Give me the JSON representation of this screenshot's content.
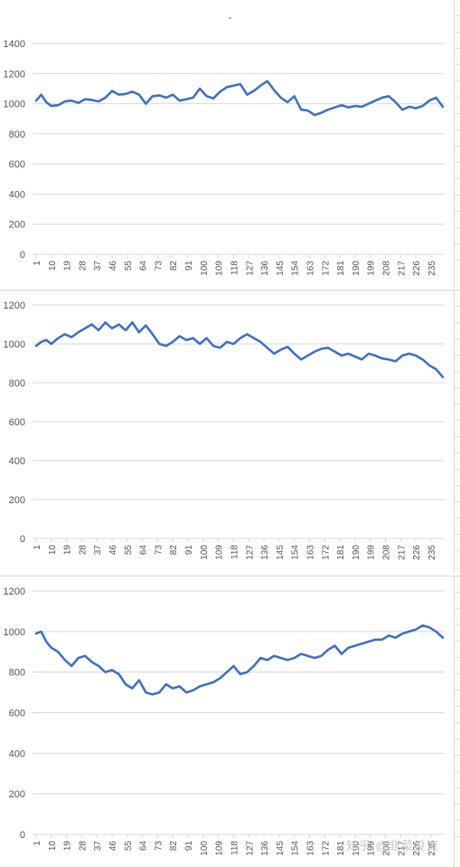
{
  "window": {
    "title": "-"
  },
  "watermark": "知乎 @韭菜投资",
  "colors": {
    "series": "#4472c4",
    "grid": "#d9d9d9",
    "text": "#595959"
  },
  "chart_data": [
    {
      "type": "line",
      "title": "",
      "xlabel": "",
      "ylabel": "",
      "ylim": [
        0,
        1400
      ],
      "yticks": [
        0,
        200,
        400,
        600,
        800,
        1000,
        1200,
        1400
      ],
      "x_range": [
        1,
        242
      ],
      "xticks": [
        1,
        10,
        19,
        28,
        37,
        46,
        55,
        64,
        73,
        82,
        91,
        100,
        109,
        118,
        127,
        136,
        145,
        154,
        163,
        172,
        181,
        190,
        199,
        208,
        217,
        226,
        235
      ],
      "grid": true,
      "legend": "none",
      "series": [
        {
          "x": [
            1,
            4,
            7,
            10,
            14,
            18,
            22,
            26,
            30,
            34,
            38,
            42,
            46,
            50,
            54,
            58,
            62,
            66,
            70,
            74,
            78,
            82,
            86,
            90,
            94,
            98,
            102,
            106,
            110,
            114,
            118,
            122,
            126,
            130,
            134,
            138,
            142,
            146,
            150,
            154,
            158,
            162,
            166,
            170,
            174,
            178,
            182,
            186,
            190,
            194,
            198,
            202,
            206,
            210,
            214,
            218,
            222,
            226,
            230,
            234,
            238,
            242
          ],
          "values": [
            1020,
            1060,
            1010,
            985,
            990,
            1015,
            1020,
            1005,
            1030,
            1025,
            1015,
            1040,
            1085,
            1060,
            1065,
            1080,
            1060,
            1000,
            1050,
            1055,
            1040,
            1060,
            1020,
            1030,
            1040,
            1100,
            1050,
            1035,
            1080,
            1110,
            1120,
            1130,
            1060,
            1085,
            1120,
            1150,
            1090,
            1040,
            1010,
            1050,
            960,
            955,
            925,
            940,
            960,
            975,
            990,
            975,
            985,
            980,
            1000,
            1020,
            1040,
            1050,
            1010,
            960,
            980,
            970,
            985,
            1020,
            1040,
            980
          ]
        }
      ]
    },
    {
      "type": "line",
      "title": "",
      "xlabel": "",
      "ylabel": "",
      "ylim": [
        0,
        1200
      ],
      "yticks": [
        0,
        200,
        400,
        600,
        800,
        1000,
        1200
      ],
      "x_range": [
        1,
        242
      ],
      "xticks": [
        1,
        10,
        19,
        28,
        37,
        46,
        55,
        64,
        73,
        82,
        91,
        100,
        109,
        118,
        127,
        136,
        145,
        154,
        163,
        172,
        181,
        190,
        199,
        208,
        217,
        226,
        235
      ],
      "grid": true,
      "legend": "none",
      "series": [
        {
          "x": [
            1,
            4,
            7,
            10,
            14,
            18,
            22,
            26,
            30,
            34,
            38,
            42,
            46,
            50,
            54,
            58,
            62,
            66,
            70,
            74,
            78,
            82,
            86,
            90,
            94,
            98,
            102,
            106,
            110,
            114,
            118,
            122,
            126,
            130,
            134,
            138,
            142,
            146,
            150,
            154,
            158,
            162,
            166,
            170,
            174,
            178,
            182,
            186,
            190,
            194,
            198,
            202,
            206,
            210,
            214,
            218,
            222,
            226,
            230,
            234,
            238,
            242
          ],
          "values": [
            990,
            1010,
            1020,
            1000,
            1030,
            1050,
            1035,
            1060,
            1080,
            1100,
            1070,
            1110,
            1080,
            1100,
            1070,
            1110,
            1060,
            1095,
            1050,
            1000,
            990,
            1010,
            1040,
            1020,
            1030,
            1000,
            1030,
            990,
            980,
            1010,
            1000,
            1030,
            1050,
            1030,
            1010,
            980,
            950,
            970,
            985,
            950,
            920,
            940,
            960,
            975,
            980,
            960,
            940,
            950,
            935,
            920,
            950,
            940,
            925,
            920,
            910,
            940,
            950,
            940,
            920,
            890,
            870,
            830
          ]
        }
      ]
    },
    {
      "type": "line",
      "title": "",
      "xlabel": "",
      "ylabel": "",
      "ylim": [
        0,
        1200
      ],
      "yticks": [
        0,
        200,
        400,
        600,
        800,
        1000,
        1200
      ],
      "x_range": [
        1,
        242
      ],
      "xticks": [
        1,
        10,
        19,
        28,
        37,
        46,
        55,
        64,
        73,
        82,
        91,
        100,
        109,
        118,
        127,
        136,
        145,
        154,
        163,
        172,
        181,
        190,
        199,
        208,
        217,
        226,
        235
      ],
      "grid": true,
      "legend": "none",
      "series": [
        {
          "x": [
            1,
            4,
            7,
            10,
            14,
            18,
            22,
            26,
            30,
            34,
            38,
            42,
            46,
            50,
            54,
            58,
            62,
            66,
            70,
            74,
            78,
            82,
            86,
            90,
            94,
            98,
            102,
            106,
            110,
            114,
            118,
            122,
            126,
            130,
            134,
            138,
            142,
            146,
            150,
            154,
            158,
            162,
            166,
            170,
            174,
            178,
            182,
            186,
            190,
            194,
            198,
            202,
            206,
            210,
            214,
            218,
            222,
            226,
            230,
            234,
            238,
            242
          ],
          "values": [
            990,
            1000,
            950,
            920,
            900,
            860,
            830,
            870,
            880,
            850,
            830,
            800,
            810,
            790,
            740,
            720,
            760,
            700,
            690,
            700,
            740,
            720,
            730,
            700,
            710,
            730,
            740,
            750,
            770,
            800,
            830,
            790,
            800,
            830,
            870,
            860,
            880,
            870,
            860,
            870,
            890,
            880,
            870,
            880,
            910,
            930,
            890,
            920,
            930,
            940,
            950,
            960,
            960,
            980,
            970,
            990,
            1000,
            1010,
            1030,
            1020,
            1000,
            970
          ]
        }
      ]
    }
  ]
}
